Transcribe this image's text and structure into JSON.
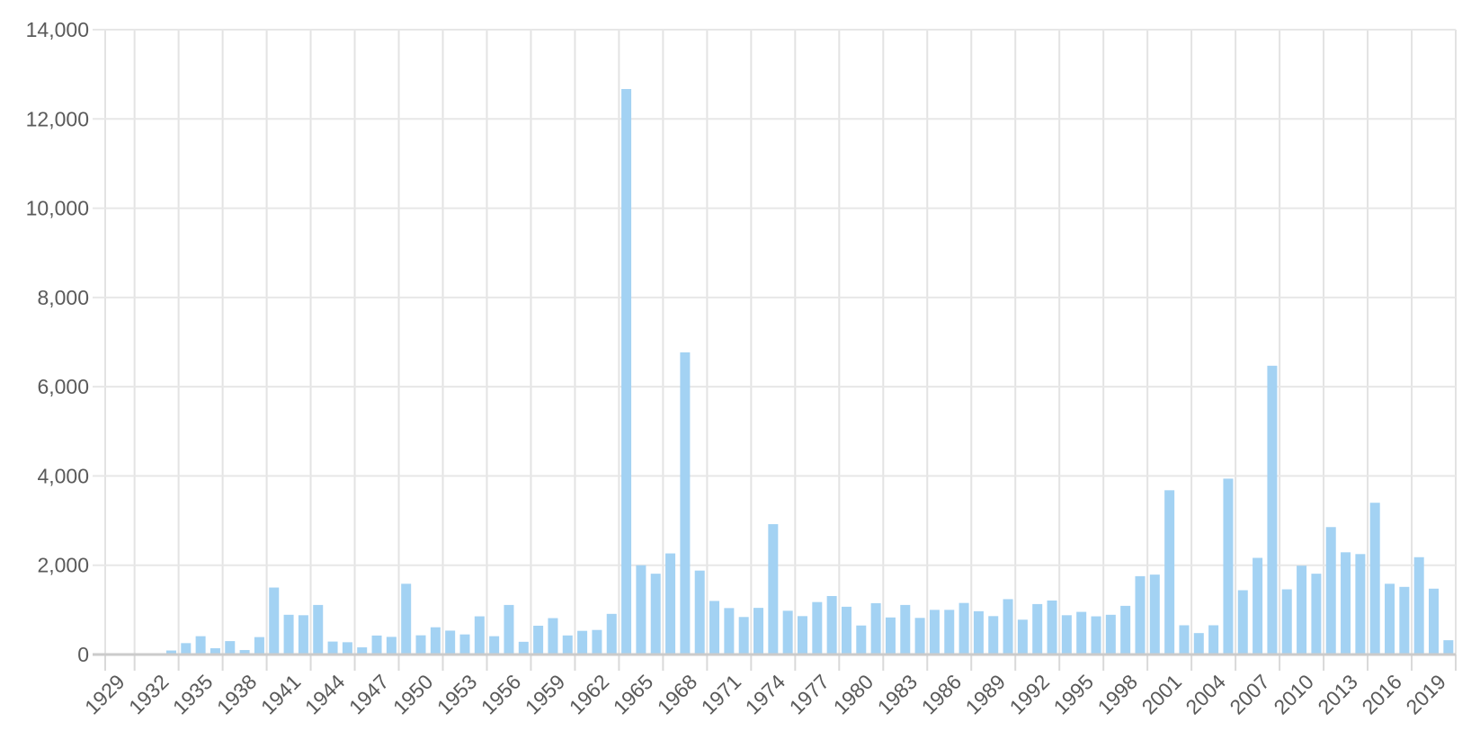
{
  "chart_data": {
    "type": "bar",
    "title": "",
    "xlabel": "",
    "ylabel": "",
    "categories": [
      "1929",
      "1930",
      "1931",
      "1932",
      "1933",
      "1934",
      "1935",
      "1936",
      "1937",
      "1938",
      "1939",
      "1940",
      "1941",
      "1942",
      "1943",
      "1944",
      "1945",
      "1946",
      "1947",
      "1948",
      "1949",
      "1950",
      "1951",
      "1952",
      "1953",
      "1954",
      "1955",
      "1956",
      "1957",
      "1958",
      "1959",
      "1960",
      "1961",
      "1962",
      "1963",
      "1964",
      "1965",
      "1966",
      "1967",
      "1968",
      "1969",
      "1970",
      "1971",
      "1972",
      "1973",
      "1974",
      "1975",
      "1976",
      "1977",
      "1978",
      "1979",
      "1980",
      "1981",
      "1982",
      "1983",
      "1984",
      "1985",
      "1986",
      "1987",
      "1988",
      "1989",
      "1990",
      "1991",
      "1992",
      "1993",
      "1994",
      "1995",
      "1996",
      "1997",
      "1998",
      "1999",
      "2000",
      "2001",
      "2002",
      "2003",
      "2004",
      "2005",
      "2006",
      "2007",
      "2008",
      "2009",
      "2010",
      "2011",
      "2012",
      "2013",
      "2014",
      "2015",
      "2016",
      "2017",
      "2018",
      "2019",
      "2020"
    ],
    "values": [
      20,
      18,
      20,
      5,
      90,
      255,
      410,
      140,
      300,
      100,
      390,
      1500,
      890,
      880,
      1110,
      290,
      275,
      160,
      425,
      395,
      1585,
      430,
      610,
      535,
      450,
      855,
      410,
      1110,
      285,
      645,
      815,
      427,
      530,
      550,
      910,
      12670,
      2000,
      1810,
      2265,
      6770,
      1880,
      1200,
      1040,
      840,
      1045,
      2920,
      980,
      860,
      1175,
      1310,
      1070,
      650,
      1150,
      830,
      1110,
      820,
      1000,
      1000,
      1155,
      970,
      860,
      1240,
      780,
      1130,
      1210,
      880,
      955,
      855,
      890,
      1090,
      1755,
      1790,
      3680,
      655,
      480,
      655,
      3940,
      1440,
      2165,
      6470,
      1460,
      1990,
      1810,
      2855,
      2290,
      2250,
      3400,
      1585,
      1515,
      2180,
      1475,
      320
    ],
    "ylim": [
      0,
      14000
    ],
    "y_ticks": [
      0,
      2000,
      4000,
      6000,
      8000,
      10000,
      12000,
      14000
    ],
    "y_tick_labels": [
      "0",
      "2,000",
      "4,000",
      "6,000",
      "8,000",
      "10,000",
      "12,000",
      "14,000"
    ],
    "x_tick_labels": [
      "1929",
      "1932",
      "1935",
      "1938",
      "1941",
      "1944",
      "1947",
      "1950",
      "1953",
      "1956",
      "1959",
      "1962",
      "1965",
      "1968",
      "1971",
      "1974",
      "1977",
      "1980",
      "1983",
      "1986",
      "1989",
      "1992",
      "1995",
      "1998",
      "2001",
      "2004",
      "2007",
      "2010",
      "2013",
      "2016",
      "2019"
    ],
    "x_label_step": 3,
    "grid": true,
    "legend": "none",
    "bar_color": "#A3D2F3"
  },
  "colors": {
    "background": "#FFFFFF",
    "bar": "#A3D2F3",
    "h_gridline": "#E7E7E7",
    "v_gridline": "#E3E3E3",
    "baseline": "#CBCBCB",
    "tick": "#D9D9D9",
    "axis_text": "#5A5A5A"
  }
}
